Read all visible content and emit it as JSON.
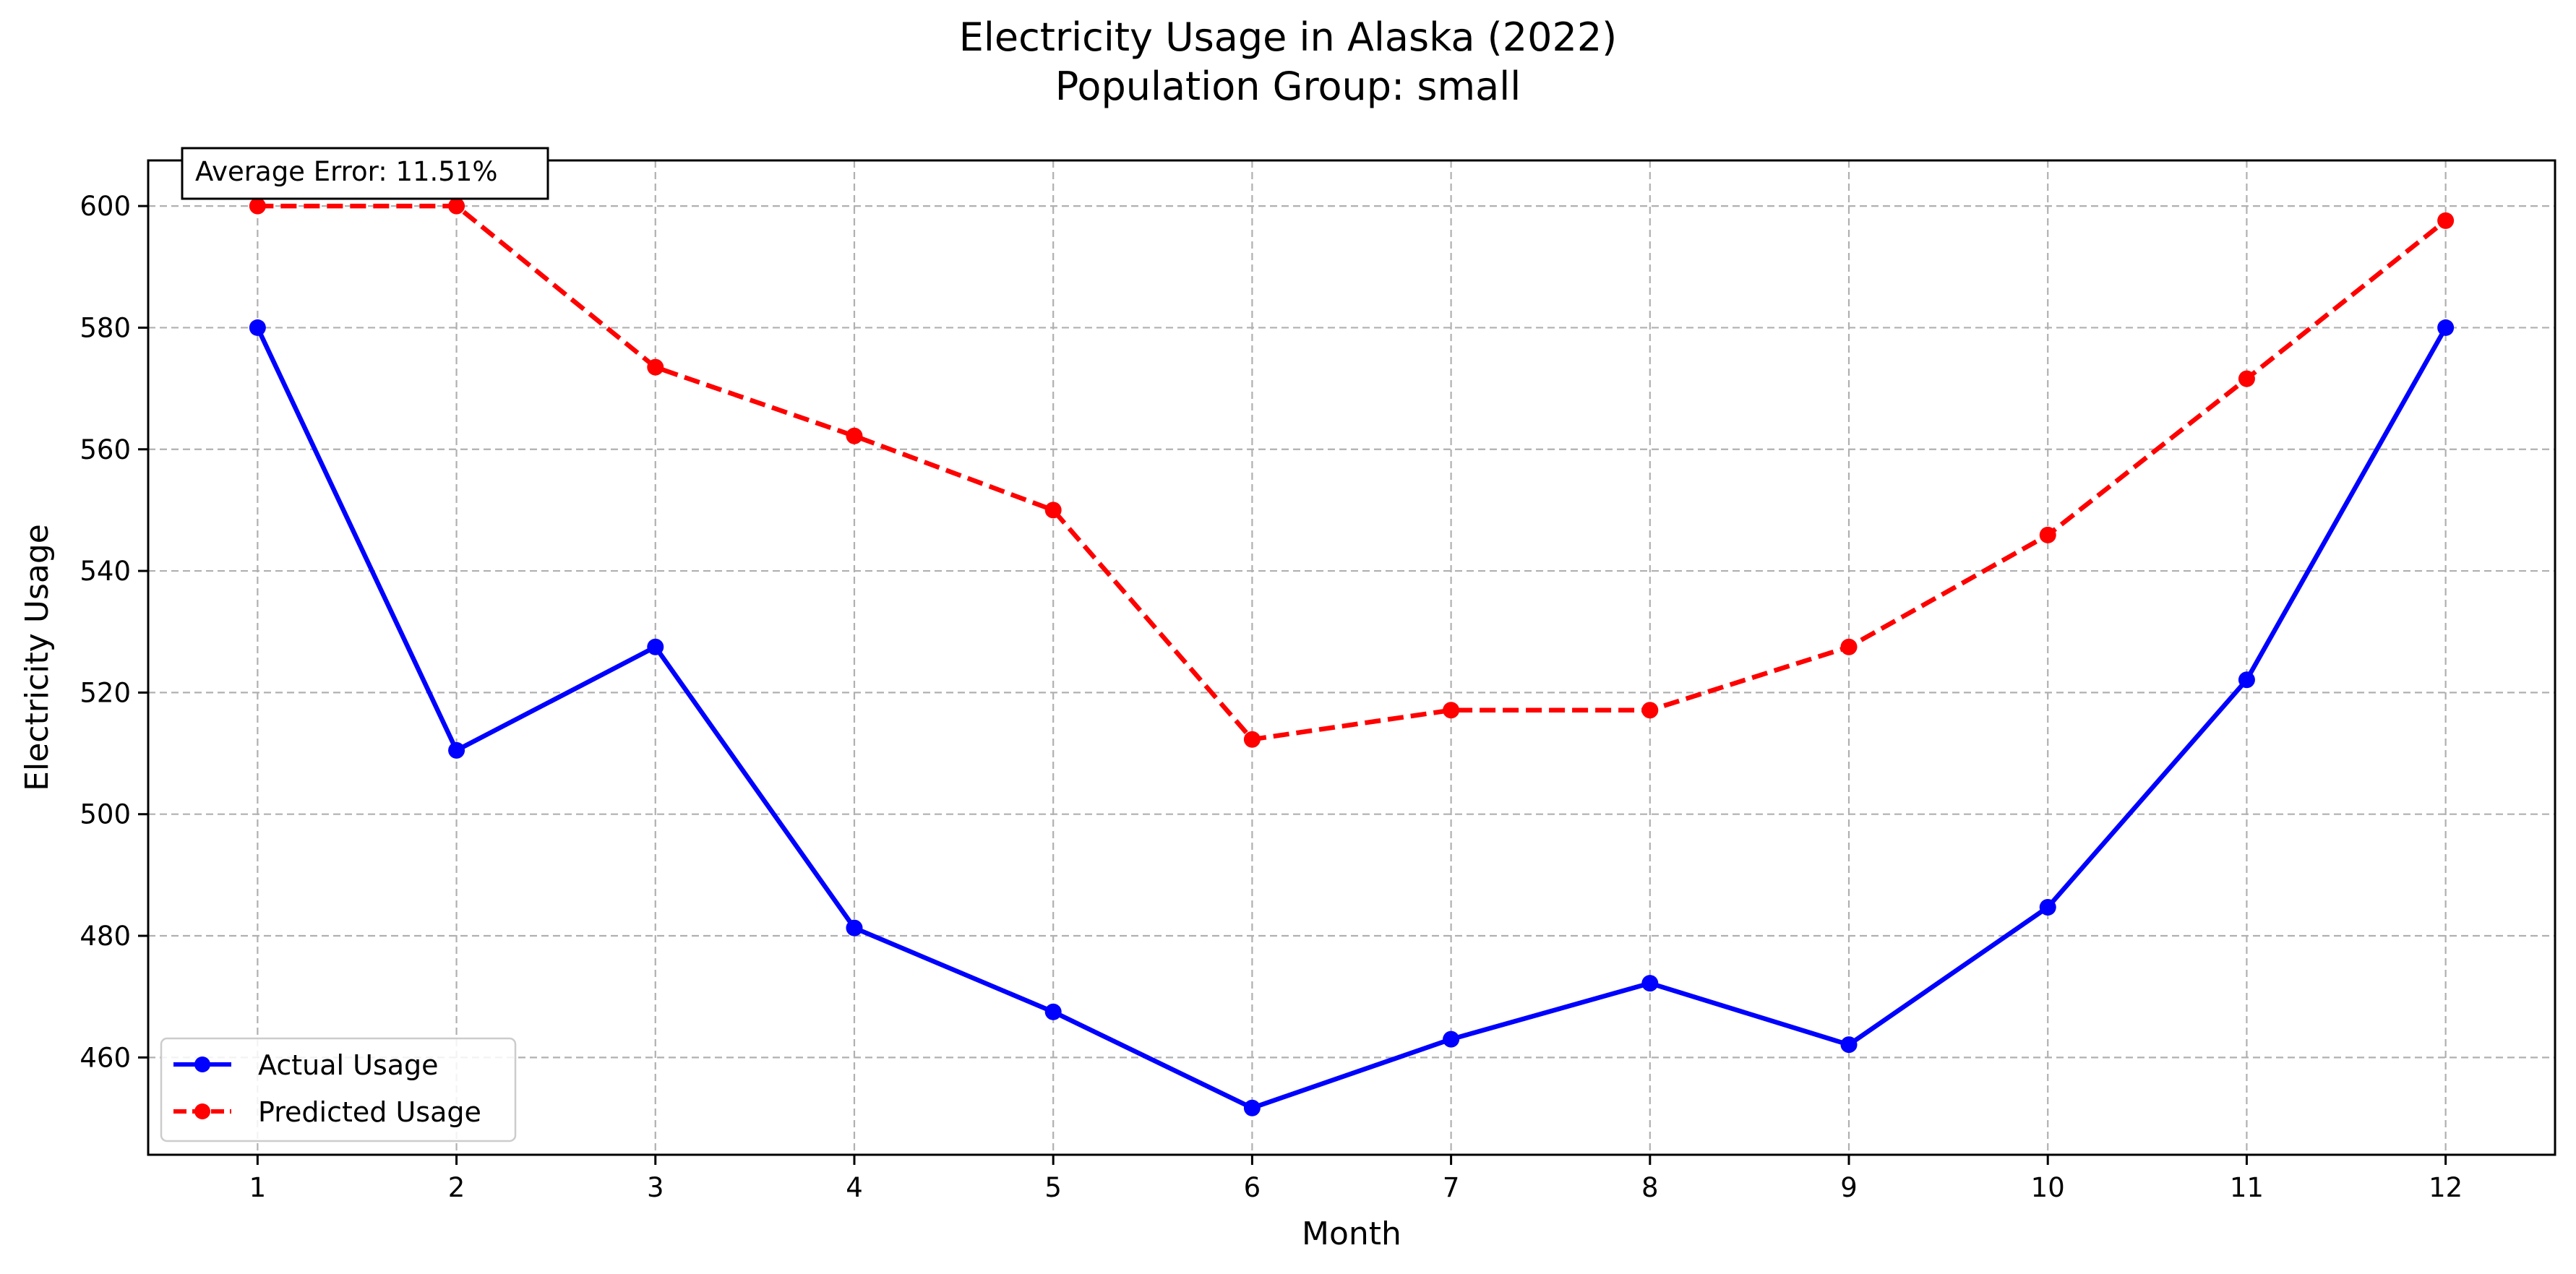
{
  "chart_data": {
    "type": "line",
    "title": "Electricity Usage in Alaska (2022)",
    "subtitle": "Population Group: small",
    "xlabel": "Month",
    "ylabel": "Electricity Usage",
    "x": [
      1,
      2,
      3,
      4,
      5,
      6,
      7,
      8,
      9,
      10,
      11,
      12
    ],
    "x_ticks": [
      "1",
      "2",
      "3",
      "4",
      "5",
      "6",
      "7",
      "8",
      "9",
      "10",
      "11",
      "12"
    ],
    "y_ticks": [
      460,
      480,
      500,
      520,
      540,
      560,
      580,
      600
    ],
    "xlim": [
      0.45,
      12.55
    ],
    "ylim": [
      444,
      607.5
    ],
    "grid": true,
    "legend_position": "lower-left",
    "annotation": "Average Error: 11.51%",
    "series": [
      {
        "name": "Actual Usage",
        "color": "#0000ff",
        "style": "solid",
        "marker": "circle",
        "values": [
          580,
          510.5,
          527.5,
          481.3,
          467.5,
          451.7,
          463,
          472.2,
          462.1,
          484.7,
          522.1,
          580
        ]
      },
      {
        "name": "Predicted Usage",
        "color": "#ff0000",
        "style": "dashed",
        "marker": "circle",
        "values": [
          600,
          600,
          573.5,
          562.2,
          550,
          512.3,
          517.1,
          517.1,
          527.5,
          545.9,
          571.6,
          597.6
        ]
      }
    ]
  }
}
